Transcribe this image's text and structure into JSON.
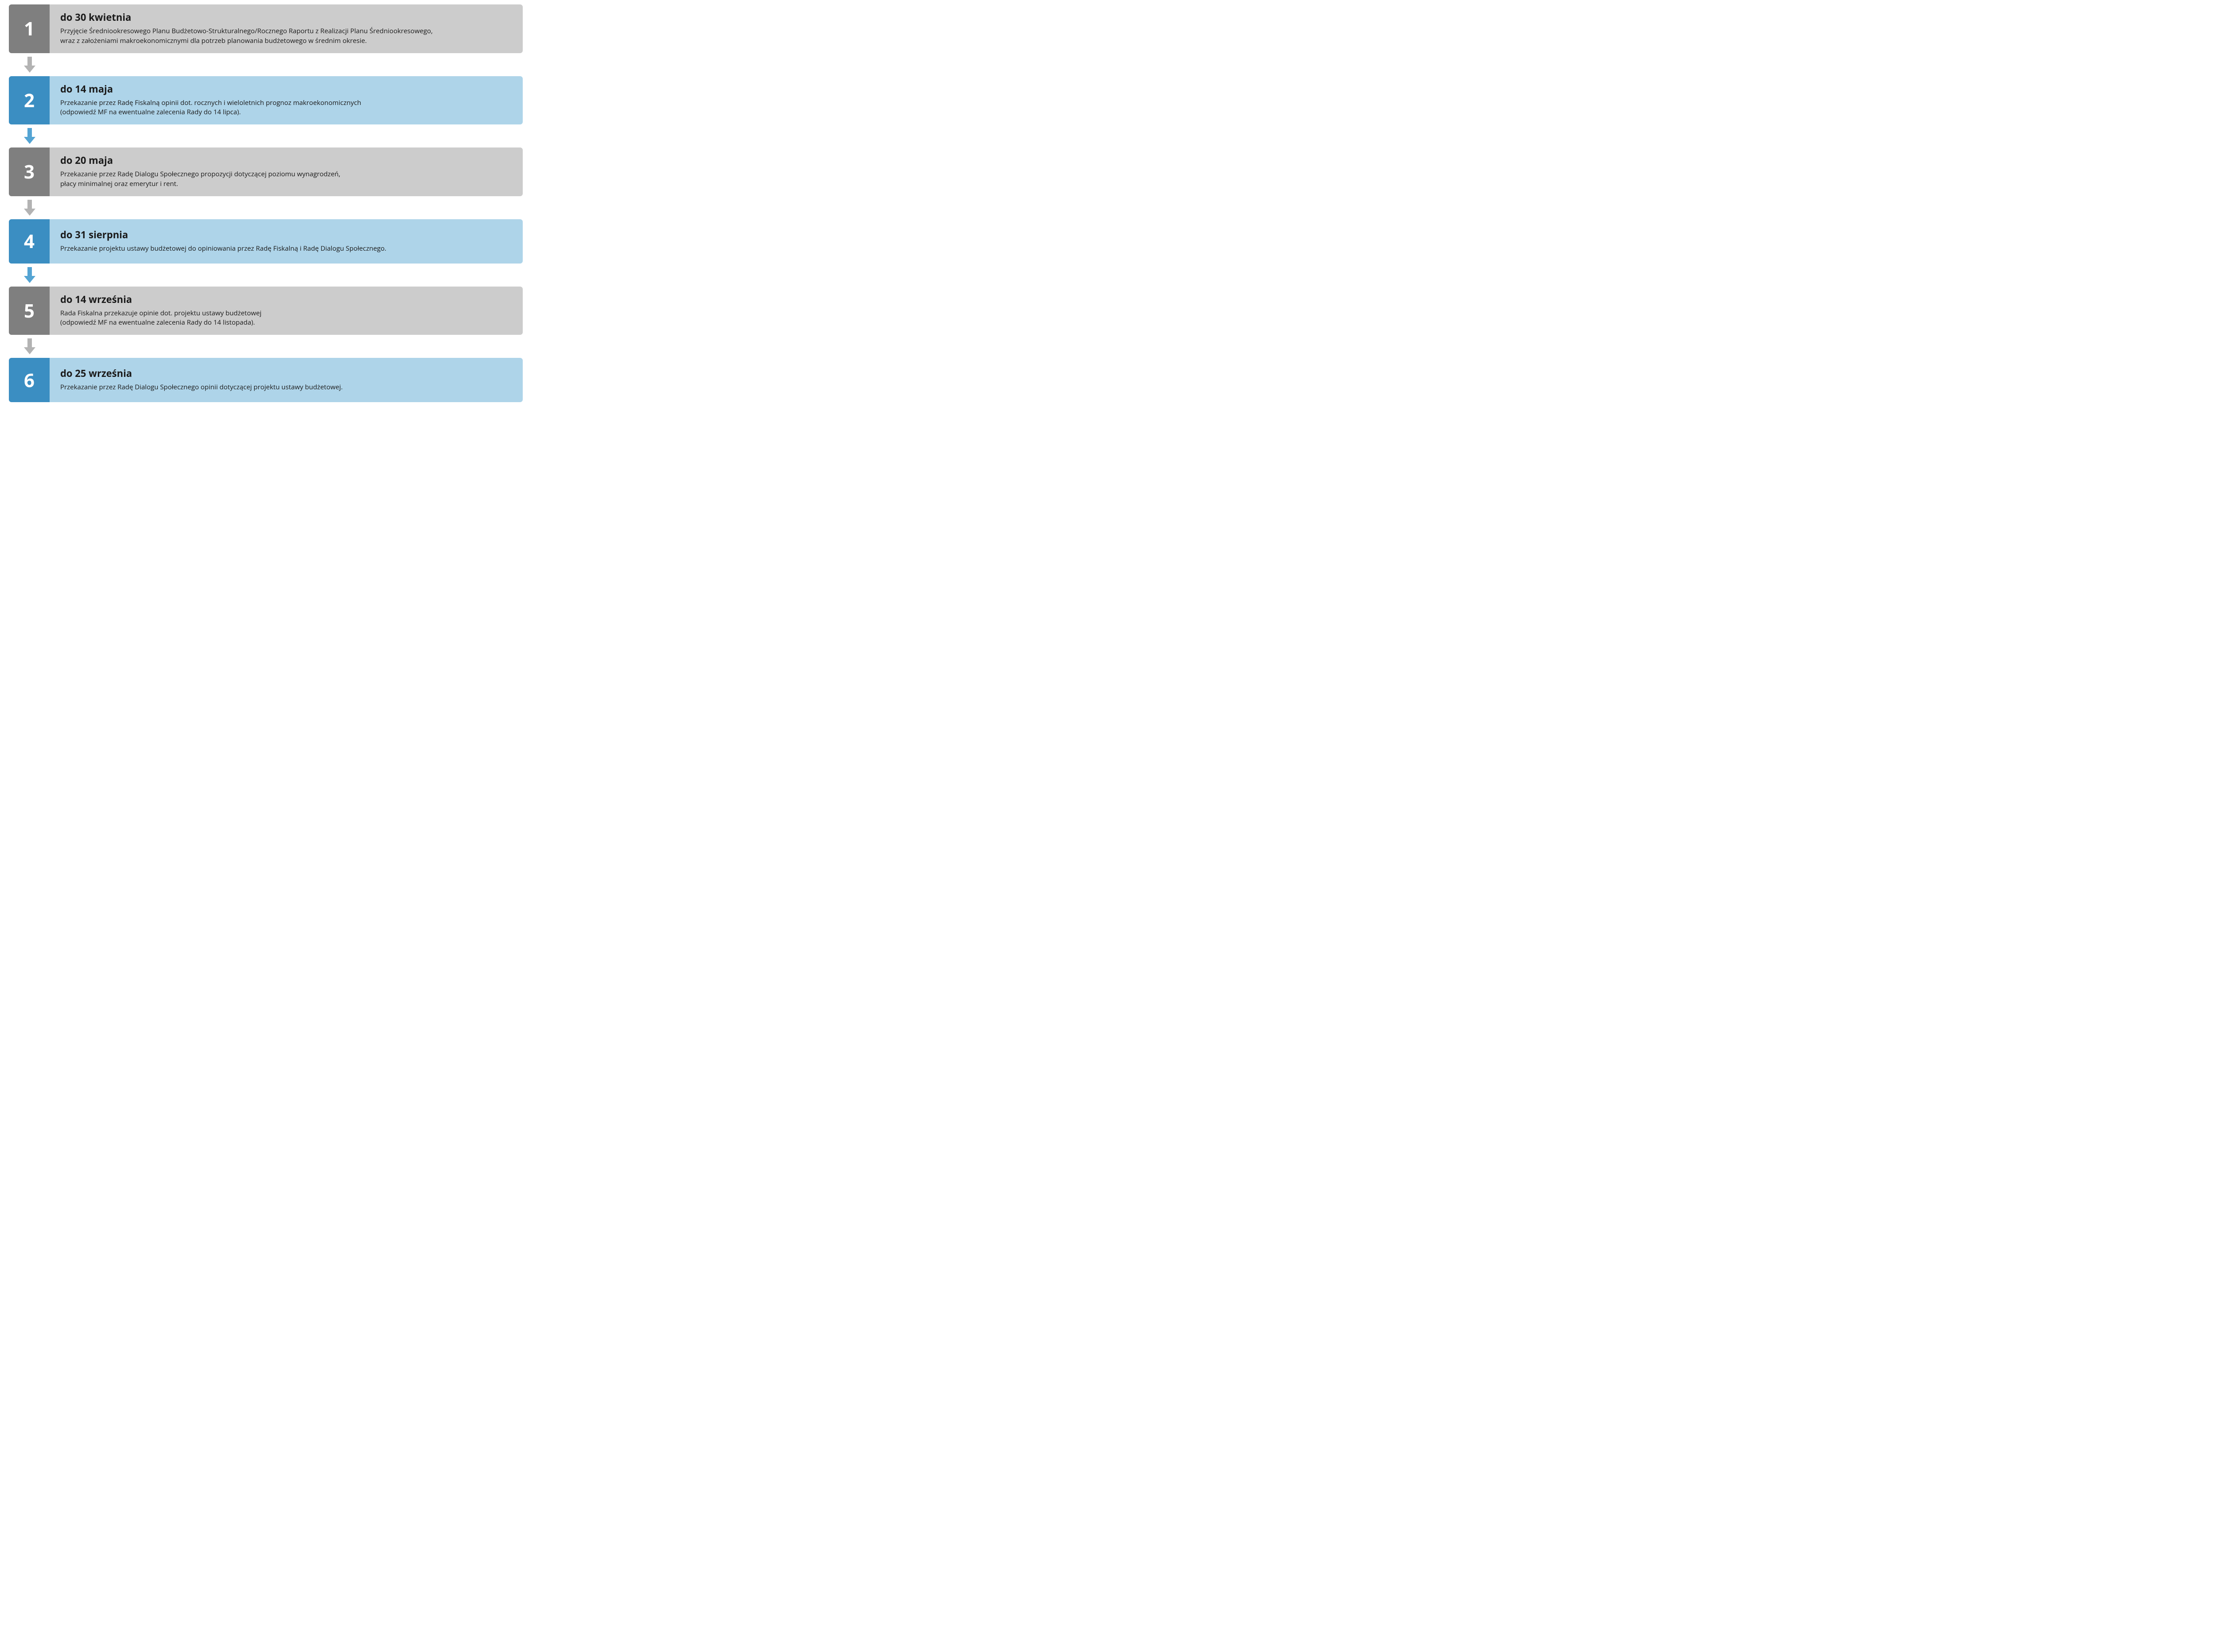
{
  "colors": {
    "gray_dark": "#7f7f7f",
    "gray_light": "#cccccc",
    "blue_dark": "#3b8ec2",
    "blue_light": "#aed4e9",
    "arrow_gray": "#b3b3b3",
    "arrow_blue": "#54a4d3",
    "text": "#1a1a1a",
    "num_text": "#ffffff"
  },
  "steps": [
    {
      "n": "1",
      "scheme": "gray",
      "title": "do 30 kwietnia",
      "desc": "Przyjęcie Średniookresowego Planu Budżetowo-Strukturalnego/Rocznego Raportu z Realizacji Planu Średniookresowego,\nwraz z założeniami makroekonomicznymi dla potrzeb planowania budżetowego w średnim okresie.",
      "arrow_after": "gray"
    },
    {
      "n": "2",
      "scheme": "blue",
      "title": "do 14 maja",
      "desc": "Przekazanie przez Radę Fiskalną opinii dot. rocznych i wieloletnich prognoz makroekonomicznych\n(odpowiedź MF na ewentualne zalecenia Rady do 14 lipca).",
      "arrow_after": "blue"
    },
    {
      "n": "3",
      "scheme": "gray",
      "title": "do 20 maja",
      "desc": "Przekazanie przez Radę Dialogu Społecznego propozycji dotyczącej poziomu wynagrodzeń,\npłacy minimalnej oraz emerytur i rent.",
      "arrow_after": "gray"
    },
    {
      "n": "4",
      "scheme": "blue",
      "title": "do 31 sierpnia",
      "desc": "Przekazanie projektu ustawy budżetowej do opiniowania przez Radę Fiskalną i Radę Dialogu Społecznego.",
      "arrow_after": "blue"
    },
    {
      "n": "5",
      "scheme": "gray",
      "title": "do 14 września",
      "desc": "Rada Fiskalna przekazuje opinie dot. projektu ustawy budżetowej\n(odpowiedź MF na ewentualne zalecenia Rady do 14 listopada).",
      "arrow_after": "gray"
    },
    {
      "n": "6",
      "scheme": "blue",
      "title": "do 25 września",
      "desc": "Przekazanie przez Radę Dialogu Społecznego opinii dotyczącej projektu ustawy budżetowej.",
      "arrow_after": null
    }
  ]
}
